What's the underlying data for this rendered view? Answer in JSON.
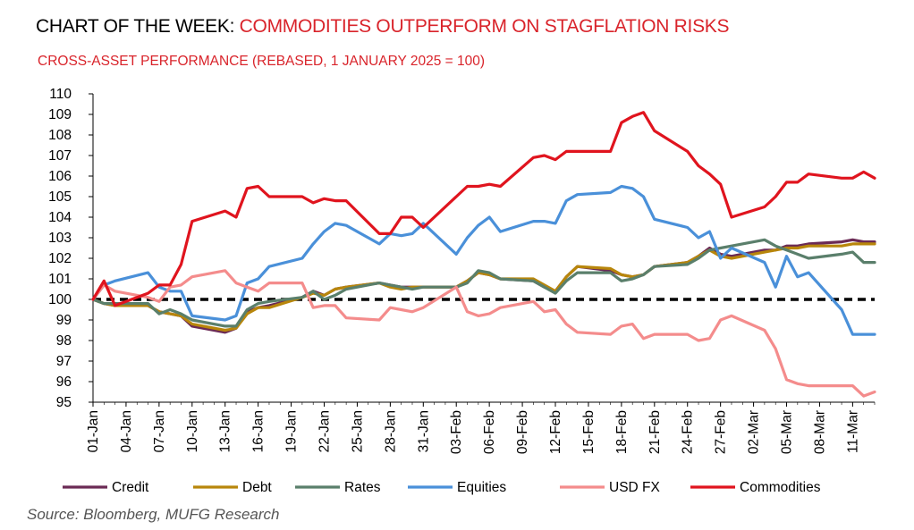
{
  "header": {
    "title_prefix": "CHART OF THE WEEK: ",
    "title_main": "COMMODITIES OUTPERFORM ON STAGFLATION RISKS",
    "subtitle": "CROSS-ASSET PERFORMANCE (REBASED, 1 JANUARY 2025 = 100)"
  },
  "source": "Source: Bloomberg, MUFG Research",
  "chart_data": {
    "type": "line",
    "title": "CROSS-ASSET PERFORMANCE (REBASED, 1 JANUARY 2025 = 100)",
    "ylim": [
      95,
      110
    ],
    "yticks": [
      "110",
      "109",
      "108",
      "107",
      "106",
      "105",
      "104",
      "103",
      "102",
      "101",
      "100",
      "99",
      "98",
      "97",
      "96",
      "95"
    ],
    "xlim": [
      "01-Jan",
      "13-Mar"
    ],
    "xticks": [
      "01-Jan",
      "04-Jan",
      "07-Jan",
      "10-Jan",
      "13-Jan",
      "16-Jan",
      "19-Jan",
      "22-Jan",
      "25-Jan",
      "28-Jan",
      "31-Jan",
      "03-Feb",
      "06-Feb",
      "09-Feb",
      "12-Feb",
      "15-Feb",
      "18-Feb",
      "21-Feb",
      "24-Feb",
      "27-Feb",
      "02-Mar",
      "05-Mar",
      "08-Mar",
      "11-Mar"
    ],
    "baseline": 100,
    "legend_position": "bottom",
    "grid": false,
    "series": [
      {
        "name": "Credit",
        "color": "#6b2a55",
        "x": [
          "01-Jan",
          "02-Jan",
          "03-Jan",
          "06-Jan",
          "07-Jan",
          "08-Jan",
          "09-Jan",
          "10-Jan",
          "13-Jan",
          "14-Jan",
          "15-Jan",
          "16-Jan",
          "17-Jan",
          "20-Jan",
          "21-Jan",
          "22-Jan",
          "23-Jan",
          "24-Jan",
          "27-Jan",
          "28-Jan",
          "29-Jan",
          "30-Jan",
          "31-Jan",
          "03-Feb",
          "04-Feb",
          "05-Feb",
          "06-Feb",
          "07-Feb",
          "10-Feb",
          "11-Feb",
          "12-Feb",
          "13-Feb",
          "14-Feb",
          "17-Feb",
          "18-Feb",
          "19-Feb",
          "20-Feb",
          "21-Feb",
          "24-Feb",
          "25-Feb",
          "26-Feb",
          "27-Feb",
          "28-Feb",
          "03-Mar",
          "04-Mar",
          "05-Mar",
          "06-Mar",
          "07-Mar",
          "10-Mar",
          "11-Mar",
          "12-Mar",
          "13-Mar"
        ],
        "values": [
          100,
          99.8,
          99.7,
          99.7,
          99.4,
          99.3,
          99.2,
          98.7,
          98.4,
          98.6,
          99.4,
          99.6,
          99.7,
          100.1,
          100.4,
          100.2,
          100.5,
          100.6,
          100.8,
          100.7,
          100.6,
          100.6,
          100.6,
          100.6,
          100.9,
          101.3,
          101.2,
          101.0,
          100.9,
          100.6,
          100.4,
          101.1,
          101.6,
          101.4,
          101.2,
          101.1,
          101.2,
          101.6,
          101.8,
          102.1,
          102.5,
          102.2,
          102.1,
          102.4,
          102.4,
          102.6,
          102.6,
          102.7,
          102.8,
          102.9,
          102.8,
          102.8
        ]
      },
      {
        "name": "Debt",
        "color": "#b8860b",
        "x": [
          "01-Jan",
          "02-Jan",
          "03-Jan",
          "06-Jan",
          "07-Jan",
          "08-Jan",
          "09-Jan",
          "10-Jan",
          "13-Jan",
          "14-Jan",
          "15-Jan",
          "16-Jan",
          "17-Jan",
          "20-Jan",
          "21-Jan",
          "22-Jan",
          "23-Jan",
          "24-Jan",
          "27-Jan",
          "28-Jan",
          "29-Jan",
          "30-Jan",
          "31-Jan",
          "03-Feb",
          "04-Feb",
          "05-Feb",
          "06-Feb",
          "07-Feb",
          "10-Feb",
          "11-Feb",
          "12-Feb",
          "13-Feb",
          "14-Feb",
          "17-Feb",
          "18-Feb",
          "19-Feb",
          "20-Feb",
          "21-Feb",
          "24-Feb",
          "25-Feb",
          "26-Feb",
          "27-Feb",
          "28-Feb",
          "03-Mar",
          "04-Mar",
          "05-Mar",
          "06-Mar",
          "07-Mar",
          "10-Mar",
          "11-Mar",
          "12-Mar",
          "13-Mar"
        ],
        "values": [
          100,
          99.8,
          99.7,
          99.7,
          99.4,
          99.3,
          99.2,
          98.8,
          98.5,
          98.6,
          99.3,
          99.6,
          99.6,
          100.1,
          100.3,
          100.2,
          100.5,
          100.6,
          100.8,
          100.6,
          100.5,
          100.6,
          100.6,
          100.6,
          100.9,
          101.3,
          101.2,
          101.0,
          101.0,
          100.7,
          100.4,
          101.1,
          101.6,
          101.5,
          101.2,
          101.1,
          101.2,
          101.6,
          101.8,
          102.1,
          102.4,
          102.1,
          102.0,
          102.3,
          102.4,
          102.5,
          102.5,
          102.6,
          102.6,
          102.7,
          102.7,
          102.7
        ]
      },
      {
        "name": "Rates",
        "color": "#5a7f6b",
        "x": [
          "01-Jan",
          "02-Jan",
          "03-Jan",
          "06-Jan",
          "07-Jan",
          "08-Jan",
          "09-Jan",
          "10-Jan",
          "13-Jan",
          "14-Jan",
          "15-Jan",
          "16-Jan",
          "17-Jan",
          "20-Jan",
          "21-Jan",
          "22-Jan",
          "23-Jan",
          "24-Jan",
          "27-Jan",
          "28-Jan",
          "29-Jan",
          "30-Jan",
          "31-Jan",
          "03-Feb",
          "04-Feb",
          "05-Feb",
          "06-Feb",
          "07-Feb",
          "10-Feb",
          "11-Feb",
          "12-Feb",
          "13-Feb",
          "14-Feb",
          "17-Feb",
          "18-Feb",
          "19-Feb",
          "20-Feb",
          "21-Feb",
          "24-Feb",
          "25-Feb",
          "26-Feb",
          "27-Feb",
          "28-Feb",
          "03-Mar",
          "04-Mar",
          "05-Mar",
          "06-Mar",
          "07-Mar",
          "10-Mar",
          "11-Mar",
          "12-Mar",
          "13-Mar"
        ],
        "values": [
          100,
          99.8,
          99.8,
          99.8,
          99.3,
          99.5,
          99.3,
          99.0,
          98.7,
          98.7,
          99.5,
          99.8,
          99.9,
          100.1,
          100.4,
          100.0,
          100.2,
          100.5,
          100.8,
          100.7,
          100.6,
          100.5,
          100.6,
          100.6,
          100.8,
          101.4,
          101.3,
          101.0,
          100.9,
          100.6,
          100.3,
          100.9,
          101.3,
          101.3,
          100.9,
          101.0,
          101.2,
          101.6,
          101.7,
          102.0,
          102.4,
          102.5,
          102.6,
          102.9,
          102.6,
          102.4,
          102.2,
          102.0,
          102.2,
          102.3,
          101.8,
          101.8
        ]
      },
      {
        "name": "Equities",
        "color": "#4a90d9",
        "x": [
          "01-Jan",
          "02-Jan",
          "03-Jan",
          "06-Jan",
          "07-Jan",
          "08-Jan",
          "09-Jan",
          "10-Jan",
          "13-Jan",
          "14-Jan",
          "15-Jan",
          "16-Jan",
          "17-Jan",
          "20-Jan",
          "21-Jan",
          "22-Jan",
          "23-Jan",
          "24-Jan",
          "27-Jan",
          "28-Jan",
          "29-Jan",
          "30-Jan",
          "31-Jan",
          "03-Feb",
          "04-Feb",
          "05-Feb",
          "06-Feb",
          "07-Feb",
          "10-Feb",
          "11-Feb",
          "12-Feb",
          "13-Feb",
          "14-Feb",
          "17-Feb",
          "18-Feb",
          "19-Feb",
          "20-Feb",
          "21-Feb",
          "24-Feb",
          "25-Feb",
          "26-Feb",
          "27-Feb",
          "28-Feb",
          "03-Mar",
          "04-Mar",
          "05-Mar",
          "06-Mar",
          "07-Mar",
          "10-Mar",
          "11-Mar",
          "12-Mar",
          "13-Mar"
        ],
        "values": [
          100,
          100.7,
          100.9,
          101.3,
          100.6,
          100.4,
          100.4,
          99.2,
          99.0,
          99.2,
          100.8,
          101.0,
          101.6,
          102.0,
          102.7,
          103.3,
          103.7,
          103.6,
          102.7,
          103.2,
          103.1,
          103.2,
          103.7,
          102.2,
          103.0,
          103.6,
          104.0,
          103.3,
          103.8,
          103.8,
          103.7,
          104.8,
          105.1,
          105.2,
          105.5,
          105.4,
          105.0,
          103.9,
          103.5,
          103.0,
          103.3,
          102.0,
          102.5,
          101.8,
          100.6,
          102.1,
          101.1,
          101.3,
          99.5,
          98.3,
          98.3,
          98.3
        ]
      },
      {
        "name": "USD FX",
        "color": "#f48c8c",
        "x": [
          "01-Jan",
          "02-Jan",
          "03-Jan",
          "06-Jan",
          "07-Jan",
          "08-Jan",
          "09-Jan",
          "10-Jan",
          "13-Jan",
          "14-Jan",
          "15-Jan",
          "16-Jan",
          "17-Jan",
          "20-Jan",
          "21-Jan",
          "22-Jan",
          "23-Jan",
          "24-Jan",
          "27-Jan",
          "28-Jan",
          "29-Jan",
          "30-Jan",
          "31-Jan",
          "03-Feb",
          "04-Feb",
          "05-Feb",
          "06-Feb",
          "07-Feb",
          "10-Feb",
          "11-Feb",
          "12-Feb",
          "13-Feb",
          "14-Feb",
          "17-Feb",
          "18-Feb",
          "19-Feb",
          "20-Feb",
          "21-Feb",
          "24-Feb",
          "25-Feb",
          "26-Feb",
          "27-Feb",
          "28-Feb",
          "03-Mar",
          "04-Mar",
          "05-Mar",
          "06-Mar",
          "07-Mar",
          "10-Mar",
          "11-Mar",
          "12-Mar",
          "13-Mar"
        ],
        "values": [
          100,
          100.7,
          100.4,
          100.1,
          99.9,
          100.6,
          100.7,
          101.1,
          101.4,
          100.8,
          100.6,
          100.4,
          100.8,
          100.8,
          99.6,
          99.7,
          99.7,
          99.1,
          99.0,
          99.6,
          99.5,
          99.4,
          99.6,
          100.6,
          99.4,
          99.2,
          99.3,
          99.6,
          99.9,
          99.4,
          99.5,
          98.8,
          98.4,
          98.3,
          98.7,
          98.8,
          98.1,
          98.3,
          98.3,
          98.0,
          98.1,
          99.0,
          99.2,
          98.5,
          97.6,
          96.1,
          95.9,
          95.8,
          95.8,
          95.8,
          95.3,
          95.5
        ]
      },
      {
        "name": "Commodities",
        "color": "#e0141e",
        "x": [
          "01-Jan",
          "02-Jan",
          "03-Jan",
          "06-Jan",
          "07-Jan",
          "08-Jan",
          "09-Jan",
          "10-Jan",
          "13-Jan",
          "14-Jan",
          "15-Jan",
          "16-Jan",
          "17-Jan",
          "20-Jan",
          "21-Jan",
          "22-Jan",
          "23-Jan",
          "24-Jan",
          "27-Jan",
          "28-Jan",
          "29-Jan",
          "30-Jan",
          "31-Jan",
          "03-Feb",
          "04-Feb",
          "05-Feb",
          "06-Feb",
          "07-Feb",
          "10-Feb",
          "11-Feb",
          "12-Feb",
          "13-Feb",
          "14-Feb",
          "17-Feb",
          "18-Feb",
          "19-Feb",
          "20-Feb",
          "21-Feb",
          "24-Feb",
          "25-Feb",
          "26-Feb",
          "27-Feb",
          "28-Feb",
          "03-Mar",
          "04-Mar",
          "05-Mar",
          "06-Mar",
          "07-Mar",
          "10-Mar",
          "11-Mar",
          "12-Mar",
          "13-Mar"
        ],
        "values": [
          100,
          100.9,
          99.7,
          100.3,
          100.7,
          100.7,
          101.7,
          103.8,
          104.3,
          104.0,
          105.4,
          105.5,
          105.0,
          105.0,
          104.7,
          104.9,
          104.8,
          104.8,
          103.2,
          103.2,
          104.0,
          104.0,
          103.5,
          105.0,
          105.5,
          105.5,
          105.6,
          105.5,
          106.9,
          107.0,
          106.8,
          107.2,
          107.2,
          107.2,
          108.6,
          108.9,
          109.1,
          108.2,
          107.2,
          106.5,
          106.1,
          105.6,
          104.0,
          104.5,
          105.0,
          105.7,
          105.7,
          106.1,
          105.9,
          105.9,
          106.2,
          105.9
        ]
      }
    ]
  }
}
